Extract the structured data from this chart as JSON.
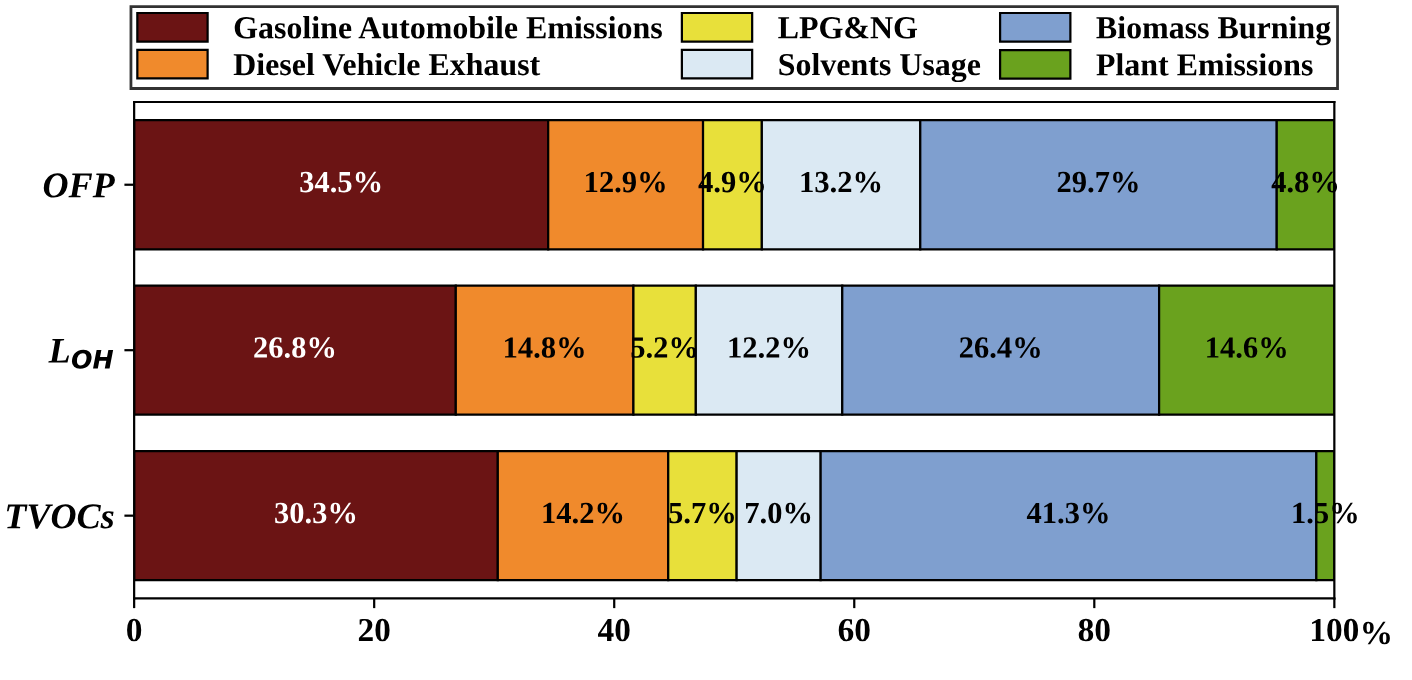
{
  "chart_data": {
    "type": "bar",
    "orientation": "horizontal",
    "stacked": true,
    "categories": [
      "OFP",
      "L$_{OH}$",
      "TVOCs"
    ],
    "xlabel": "%",
    "xlim": [
      0,
      100
    ],
    "xticks": [
      0,
      20,
      40,
      60,
      80,
      100
    ],
    "legend": "top",
    "grid": false,
    "series": [
      {
        "name": "Gasoline Automobile Emissions",
        "color": "#6b1414",
        "values": [
          34.5,
          26.8,
          30.3
        ],
        "value_labels": [
          "34.5%",
          "26.8%",
          "30.3%"
        ]
      },
      {
        "name": "Diesel Vehicle Exhaust",
        "color": "#f08a2c",
        "values": [
          12.9,
          14.8,
          14.2
        ],
        "value_labels": [
          "12.9%",
          "14.8%",
          "14.2%"
        ]
      },
      {
        "name": "LPG&NG",
        "color": "#e8e03a",
        "values": [
          4.9,
          5.2,
          5.7
        ],
        "value_labels": [
          "4.9%",
          "5.2%",
          "5.7%"
        ]
      },
      {
        "name": "Solvents Usage",
        "color": "#dbe9f3",
        "values": [
          13.2,
          12.2,
          7.0
        ],
        "value_labels": [
          "13.2%",
          "12.2%",
          "7.0%"
        ]
      },
      {
        "name": "Biomass Burning",
        "color": "#7f9fcf",
        "values": [
          29.7,
          26.4,
          41.3
        ],
        "value_labels": [
          "29.7%",
          "26.4%",
          "41.3%"
        ]
      },
      {
        "name": "Plant Emissions",
        "color": "#6aa21e",
        "values": [
          4.8,
          14.6,
          1.5
        ],
        "value_labels": [
          "4.8%",
          "14.6%",
          "1.5%"
        ]
      }
    ]
  }
}
